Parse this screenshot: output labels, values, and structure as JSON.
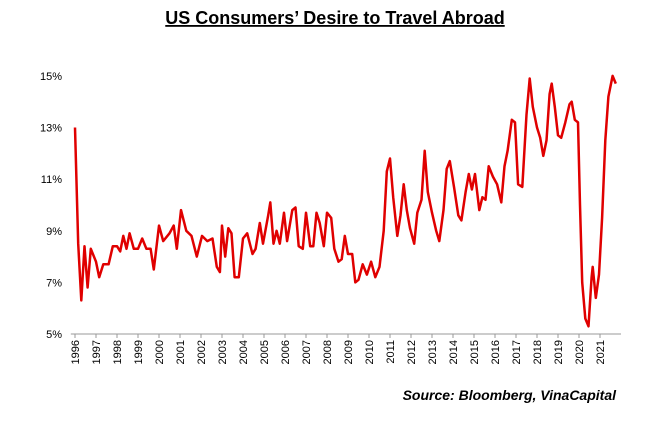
{
  "chart_data": {
    "type": "line",
    "title": "US Consumers’ Desire to Travel Abroad",
    "source": "Source: Bloomberg, VinaCapital",
    "color": "#e00000",
    "x": [
      1996.0,
      1996.15,
      1996.3,
      1996.45,
      1996.6,
      1996.75,
      1997.0,
      1997.15,
      1997.35,
      1997.6,
      1997.8,
      1998.0,
      1998.15,
      1998.3,
      1998.45,
      1998.6,
      1998.8,
      1999.0,
      1999.2,
      1999.4,
      1999.6,
      1999.75,
      2000.0,
      2000.2,
      2000.5,
      2000.7,
      2000.85,
      2001.05,
      2001.3,
      2001.55,
      2001.8,
      2002.05,
      2002.3,
      2002.55,
      2002.75,
      2002.9,
      2003.0,
      2003.15,
      2003.3,
      2003.45,
      2003.6,
      2003.8,
      2004.0,
      2004.2,
      2004.45,
      2004.6,
      2004.8,
      2004.95,
      2005.2,
      2005.3,
      2005.45,
      2005.6,
      2005.75,
      2005.95,
      2006.1,
      2006.35,
      2006.5,
      2006.65,
      2006.85,
      2007.0,
      2007.2,
      2007.35,
      2007.5,
      2007.65,
      2007.85,
      2008.0,
      2008.2,
      2008.35,
      2008.55,
      2008.7,
      2008.85,
      2009.0,
      2009.2,
      2009.35,
      2009.5,
      2009.7,
      2009.9,
      2010.1,
      2010.3,
      2010.5,
      2010.7,
      2010.85,
      2011.0,
      2011.15,
      2011.35,
      2011.5,
      2011.65,
      2011.8,
      2011.95,
      2012.15,
      2012.3,
      2012.5,
      2012.65,
      2012.8,
      2013.0,
      2013.2,
      2013.35,
      2013.55,
      2013.7,
      2013.85,
      2014.05,
      2014.25,
      2014.4,
      2014.6,
      2014.75,
      2014.9,
      2015.05,
      2015.25,
      2015.4,
      2015.55,
      2015.7,
      2015.9,
      2016.1,
      2016.3,
      2016.45,
      2016.6,
      2016.8,
      2016.95,
      2017.1,
      2017.3,
      2017.5,
      2017.65,
      2017.8,
      2018.0,
      2018.15,
      2018.3,
      2018.45,
      2018.6,
      2018.7,
      2018.85,
      2019.0,
      2019.15,
      2019.35,
      2019.55,
      2019.65,
      2019.8,
      2019.95,
      2020.05,
      2020.15,
      2020.3,
      2020.45,
      2020.6,
      2020.65,
      2020.8,
      2020.95,
      2021.1,
      2021.25,
      2021.4,
      2021.6,
      2021.75
    ],
    "values": [
      13.0,
      8.5,
      6.3,
      8.4,
      6.8,
      8.3,
      7.8,
      7.2,
      7.7,
      7.7,
      8.4,
      8.4,
      8.2,
      8.8,
      8.3,
      8.9,
      8.3,
      8.3,
      8.7,
      8.3,
      8.3,
      7.5,
      9.2,
      8.6,
      8.9,
      9.2,
      8.3,
      9.8,
      9.0,
      8.8,
      8.0,
      8.8,
      8.6,
      8.7,
      7.6,
      7.4,
      9.2,
      8.0,
      9.1,
      8.9,
      7.2,
      7.2,
      8.7,
      8.9,
      8.1,
      8.3,
      9.3,
      8.5,
      9.6,
      10.1,
      8.5,
      9.0,
      8.5,
      9.7,
      8.6,
      9.8,
      9.9,
      8.4,
      8.3,
      9.7,
      8.4,
      8.4,
      9.7,
      9.3,
      8.4,
      9.7,
      9.5,
      8.3,
      7.8,
      7.9,
      8.8,
      8.1,
      8.1,
      7.0,
      7.1,
      7.7,
      7.3,
      7.8,
      7.2,
      7.6,
      9.0,
      11.3,
      11.8,
      10.3,
      8.8,
      9.6,
      10.8,
      9.8,
      9.1,
      8.5,
      9.7,
      10.2,
      12.1,
      10.5,
      9.7,
      9.0,
      8.6,
      9.8,
      11.4,
      11.7,
      10.7,
      9.6,
      9.4,
      10.5,
      11.2,
      10.6,
      11.2,
      9.8,
      10.3,
      10.2,
      11.5,
      11.1,
      10.8,
      10.1,
      11.5,
      12.1,
      13.3,
      13.2,
      10.8,
      10.7,
      13.5,
      14.9,
      13.8,
      13.0,
      12.6,
      11.9,
      12.5,
      14.3,
      14.7,
      13.8,
      12.7,
      12.6,
      13.2,
      13.9,
      14.0,
      13.3,
      13.2,
      10.0,
      7.0,
      5.6,
      5.3,
      7.2,
      7.6,
      6.4,
      7.3,
      9.5,
      12.5,
      14.2,
      15.0,
      14.7
    ],
    "xlim": [
      1995.8,
      2022
    ],
    "xticks": [
      1996,
      1997,
      1998,
      1999,
      2000,
      2001,
      2002,
      2003,
      2004,
      2005,
      2006,
      2007,
      2008,
      2009,
      2010,
      2011,
      2012,
      2013,
      2014,
      2015,
      2016,
      2017,
      2018,
      2019,
      2020,
      2021
    ],
    "ylim": [
      5,
      15.5
    ],
    "yticks": [
      {
        "value": 5,
        "label": "5%"
      },
      {
        "value": 7,
        "label": "7%"
      },
      {
        "value": 9,
        "label": "9%"
      },
      {
        "value": 11,
        "label": "11%"
      },
      {
        "value": 13,
        "label": "13%"
      },
      {
        "value": 15,
        "label": "15%"
      }
    ]
  }
}
